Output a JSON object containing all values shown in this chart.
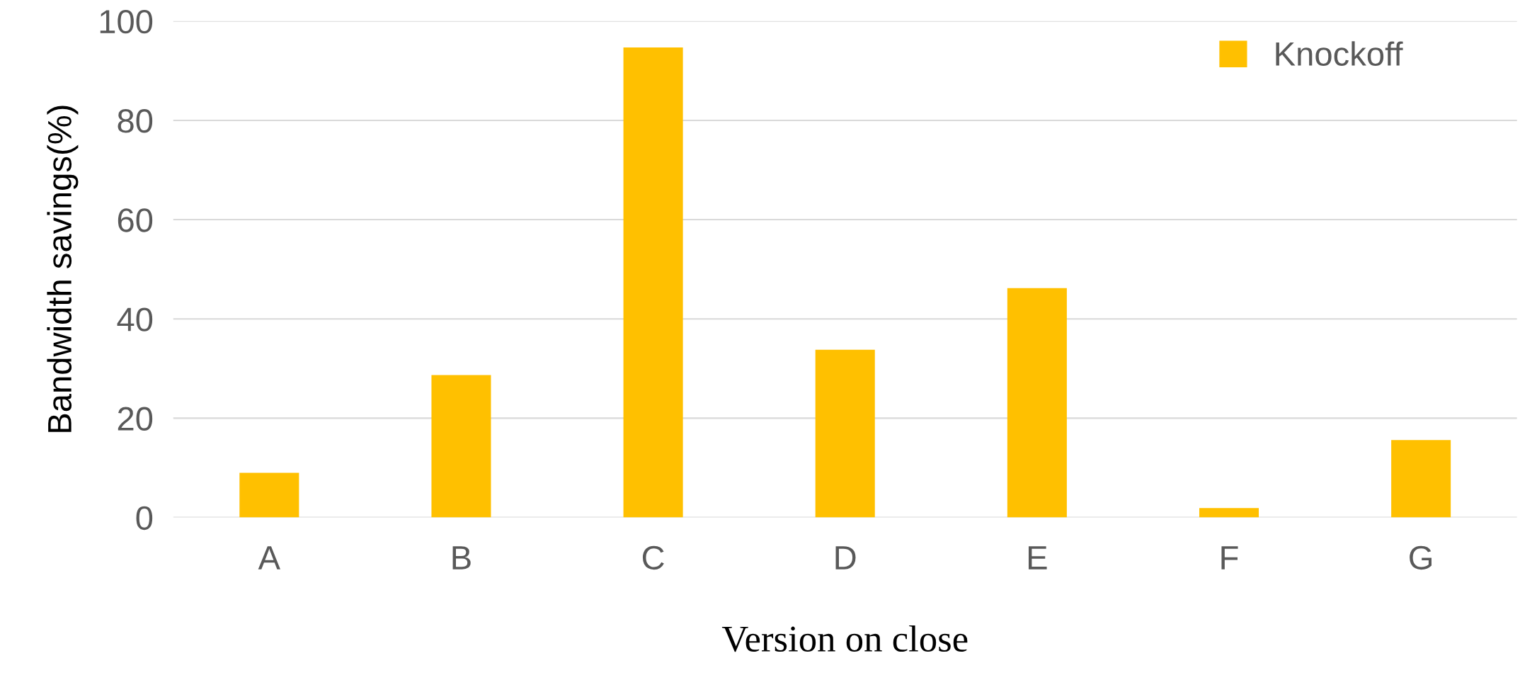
{
  "chart_data": {
    "type": "bar",
    "xlabel": "Version on close",
    "ylabel": "Bandwidth savings(%)",
    "categories": [
      "A",
      "B",
      "C",
      "D",
      "E",
      "F",
      "G"
    ],
    "series": [
      {
        "name": "Knockoff",
        "color": "#ffc000",
        "values": [
          9,
          28.7,
          94.7,
          33.8,
          46.2,
          1.9,
          15.6
        ]
      }
    ],
    "ylim": [
      0,
      100
    ],
    "yticks": [
      0,
      20,
      40,
      60,
      80,
      100
    ],
    "grid": "y",
    "legend": "top right"
  }
}
